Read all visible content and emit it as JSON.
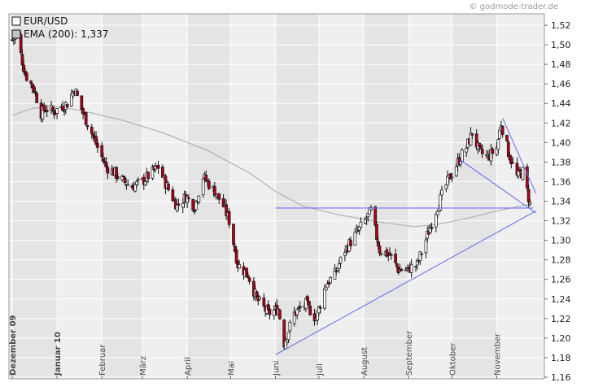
{
  "copyright": "© godmode-trader.de",
  "legend": {
    "price": "EUR/USD",
    "ema": "EMA (200): 1,337"
  },
  "colors": {
    "plot_bg": "#efefef",
    "band_bg": "#e4e4e4",
    "grid": "#ffffff",
    "candle_up_fill": "#ffffff",
    "candle_down_fill": "#b0001a",
    "candle_outline": "#111111",
    "ema_line": "#b5b5b5",
    "trendline": "#6d74f0"
  },
  "chart_data": {
    "type": "candlestick",
    "title": "",
    "series": [
      {
        "name": "EUR/USD",
        "kind": "candlestick"
      },
      {
        "name": "EMA (200): 1,337",
        "kind": "line"
      }
    ],
    "y_ticks": [
      "1,16",
      "1,18",
      "1,20",
      "1,22",
      "1,24",
      "1,26",
      "1,28",
      "1,30",
      "1,32",
      "1,34",
      "1,36",
      "1,38",
      "1,40",
      "1,42",
      "1,44",
      "1,46",
      "1,48",
      "1,50",
      "1,52"
    ],
    "ylim": [
      1.16,
      1.53
    ],
    "x_domain": [
      "2009-12-01",
      "2010-11-26"
    ],
    "x_labels": [
      {
        "label": "Dezember 09",
        "date": "2009-12-01",
        "major": true
      },
      {
        "label": "Januar 10",
        "date": "2010-01-01",
        "major": true
      },
      {
        "label": "Februar",
        "date": "2010-02-01",
        "major": false
      },
      {
        "label": "März",
        "date": "2010-03-01",
        "major": false
      },
      {
        "label": "April",
        "date": "2010-04-01",
        "major": false
      },
      {
        "label": "Mai",
        "date": "2010-05-01",
        "major": false
      },
      {
        "label": "Juni",
        "date": "2010-06-01",
        "major": false
      },
      {
        "label": "Juli",
        "date": "2010-07-01",
        "major": false
      },
      {
        "label": "August",
        "date": "2010-08-01",
        "major": false
      },
      {
        "label": "September",
        "date": "2010-09-01",
        "major": false
      },
      {
        "label": "Oktober",
        "date": "2010-10-01",
        "major": false
      },
      {
        "label": "November",
        "date": "2010-11-01",
        "major": false
      }
    ],
    "price_path": [
      [
        "2009-12-01",
        1.505
      ],
      [
        "2009-12-04",
        1.51
      ],
      [
        "2009-12-10",
        1.47
      ],
      [
        "2009-12-16",
        1.455
      ],
      [
        "2009-12-21",
        1.43
      ],
      [
        "2009-12-24",
        1.435
      ],
      [
        "2009-12-30",
        1.432
      ],
      [
        "2010-01-08",
        1.44
      ],
      [
        "2010-01-13",
        1.455
      ],
      [
        "2010-01-19",
        1.43
      ],
      [
        "2010-01-25",
        1.41
      ],
      [
        "2010-01-29",
        1.395
      ],
      [
        "2010-02-04",
        1.375
      ],
      [
        "2010-02-09",
        1.37
      ],
      [
        "2010-02-16",
        1.36
      ],
      [
        "2010-02-22",
        1.355
      ],
      [
        "2010-03-01",
        1.36
      ],
      [
        "2010-03-08",
        1.37
      ],
      [
        "2010-03-12",
        1.375
      ],
      [
        "2010-03-18",
        1.355
      ],
      [
        "2010-03-25",
        1.335
      ],
      [
        "2010-03-31",
        1.345
      ],
      [
        "2010-04-06",
        1.335
      ],
      [
        "2010-04-12",
        1.365
      ],
      [
        "2010-04-20",
        1.35
      ],
      [
        "2010-04-26",
        1.335
      ],
      [
        "2010-04-30",
        1.32
      ],
      [
        "2010-05-06",
        1.275
      ],
      [
        "2010-05-13",
        1.265
      ],
      [
        "2010-05-19",
        1.24
      ],
      [
        "2010-05-27",
        1.225
      ],
      [
        "2010-06-03",
        1.23
      ],
      [
        "2010-06-07",
        1.195
      ],
      [
        "2010-06-14",
        1.225
      ],
      [
        "2010-06-22",
        1.235
      ],
      [
        "2010-06-29",
        1.22
      ],
      [
        "2010-07-06",
        1.255
      ],
      [
        "2010-07-12",
        1.265
      ],
      [
        "2010-07-19",
        1.29
      ],
      [
        "2010-07-26",
        1.305
      ],
      [
        "2010-08-02",
        1.32
      ],
      [
        "2010-08-06",
        1.33
      ],
      [
        "2010-08-12",
        1.29
      ],
      [
        "2010-08-19",
        1.285
      ],
      [
        "2010-08-25",
        1.27
      ],
      [
        "2010-08-31",
        1.27
      ],
      [
        "2010-09-07",
        1.275
      ],
      [
        "2010-09-14",
        1.305
      ],
      [
        "2010-09-21",
        1.335
      ],
      [
        "2010-09-28",
        1.36
      ],
      [
        "2010-10-05",
        1.38
      ],
      [
        "2010-10-11",
        1.395
      ],
      [
        "2010-10-15",
        1.41
      ],
      [
        "2010-10-20",
        1.39
      ],
      [
        "2010-10-26",
        1.385
      ],
      [
        "2010-11-01",
        1.395
      ],
      [
        "2010-11-04",
        1.42
      ],
      [
        "2010-11-09",
        1.39
      ],
      [
        "2010-11-15",
        1.365
      ],
      [
        "2010-11-19",
        1.37
      ],
      [
        "2010-11-24",
        1.337
      ]
    ],
    "ema_path": [
      [
        "2009-12-01",
        1.428
      ],
      [
        "2009-12-15",
        1.435
      ],
      [
        "2010-01-01",
        1.437
      ],
      [
        "2010-01-20",
        1.432
      ],
      [
        "2010-02-15",
        1.423
      ],
      [
        "2010-03-15",
        1.41
      ],
      [
        "2010-04-15",
        1.392
      ],
      [
        "2010-05-15",
        1.368
      ],
      [
        "2010-06-01",
        1.35
      ],
      [
        "2010-06-20",
        1.335
      ],
      [
        "2010-07-15",
        1.326
      ],
      [
        "2010-08-15",
        1.318
      ],
      [
        "2010-09-05",
        1.314
      ],
      [
        "2010-09-20",
        1.316
      ],
      [
        "2010-10-10",
        1.322
      ],
      [
        "2010-11-01",
        1.33
      ],
      [
        "2010-11-24",
        1.337
      ]
    ],
    "trendlines": [
      {
        "name": "horizontal-support",
        "points": [
          [
            "2010-06-01",
            1.333
          ],
          [
            "2010-11-26",
            1.333
          ]
        ]
      },
      {
        "name": "rising-support",
        "points": [
          [
            "2010-06-01",
            1.183
          ],
          [
            "2010-11-28",
            1.33
          ]
        ]
      },
      {
        "name": "falling-resistance",
        "points": [
          [
            "2010-11-05",
            1.425
          ],
          [
            "2010-11-28",
            1.348
          ]
        ]
      },
      {
        "name": "falling-support",
        "points": [
          [
            "2010-10-07",
            1.382
          ],
          [
            "2010-11-28",
            1.328
          ]
        ]
      }
    ]
  }
}
